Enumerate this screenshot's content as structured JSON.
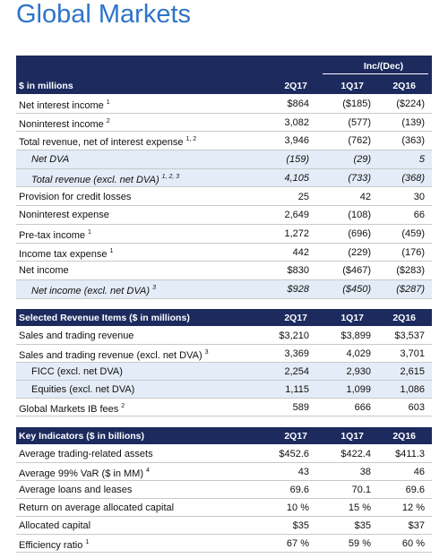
{
  "title": "Global Markets",
  "sections": [
    {
      "header_note": "Inc/(Dec)",
      "header": "$ in millions",
      "columns": [
        "2Q17",
        "1Q17",
        "2Q16"
      ],
      "rows": [
        {
          "label": "Net interest income",
          "note": "1",
          "values": [
            "$864",
            "($185)",
            "($224)"
          ]
        },
        {
          "label": "Noninterest income",
          "note": "2",
          "values": [
            "3,082",
            "(577)",
            "(139)"
          ]
        },
        {
          "label": "Total revenue, net of interest expense",
          "note": "1, 2",
          "values": [
            "3,946",
            "(762)",
            "(363)"
          ]
        },
        {
          "label": "Net DVA",
          "values": [
            "(159)",
            "(29)",
            "5"
          ]
        },
        {
          "label": "Total revenue (excl. net DVA)",
          "note": "1, 2, 3",
          "values": [
            "4,105",
            "(733)",
            "(368)"
          ]
        },
        {
          "label": "Provision for credit losses",
          "values": [
            "25",
            "42",
            "30"
          ]
        },
        {
          "label": "Noninterest expense",
          "values": [
            "2,649",
            "(108)",
            "66"
          ]
        },
        {
          "label": "Pre-tax income",
          "note": "1",
          "values": [
            "1,272",
            "(696)",
            "(459)"
          ]
        },
        {
          "label": "Income tax expense",
          "note": "1",
          "values": [
            "442",
            "(229)",
            "(176)"
          ]
        },
        {
          "label": "Net income",
          "values": [
            "$830",
            "($467)",
            "($283)"
          ]
        },
        {
          "label": "Net income (excl. net DVA)",
          "note": "3",
          "values": [
            "$928",
            "($450)",
            "($287)"
          ]
        }
      ]
    },
    {
      "header": "Selected Revenue Items ($ in millions)",
      "columns": [
        "2Q17",
        "1Q17",
        "2Q16"
      ],
      "rows": [
        {
          "label": "Sales and trading revenue",
          "values": [
            "$3,210",
            "$3,899",
            "$3,537"
          ]
        },
        {
          "label": "Sales and trading revenue (excl. net DVA)",
          "note": "3",
          "values": [
            "3,369",
            "4,029",
            "3,701"
          ]
        },
        {
          "label": "FICC (excl. net DVA)",
          "values": [
            "2,254",
            "2,930",
            "2,615"
          ]
        },
        {
          "label": "Equities (excl. net DVA)",
          "values": [
            "1,115",
            "1,099",
            "1,086"
          ]
        },
        {
          "label": "Global Markets IB fees",
          "note": "2",
          "values": [
            "589",
            "666",
            "603"
          ]
        }
      ]
    },
    {
      "header": "Key Indicators ($ in billions)",
      "columns": [
        "2Q17",
        "1Q17",
        "2Q16"
      ],
      "rows": [
        {
          "label": "Average trading-related assets",
          "values": [
            "$452.6",
            "$422.4",
            "$411.3"
          ]
        },
        {
          "label": "Average 99% VaR ($ in MM)",
          "note": "4",
          "values": [
            "43",
            "38",
            "46"
          ]
        },
        {
          "label": "Average loans and leases",
          "values": [
            "69.6",
            "70.1",
            "69.6"
          ]
        },
        {
          "label": "Return on average allocated capital",
          "values": [
            "10 %",
            "15 %",
            "12 %"
          ]
        },
        {
          "label": "Allocated capital",
          "values": [
            "$35",
            "$35",
            "$37"
          ]
        },
        {
          "label": "Efficiency ratio",
          "note": "1",
          "values": [
            "67 %",
            "59 %",
            "60 %"
          ]
        }
      ]
    }
  ]
}
